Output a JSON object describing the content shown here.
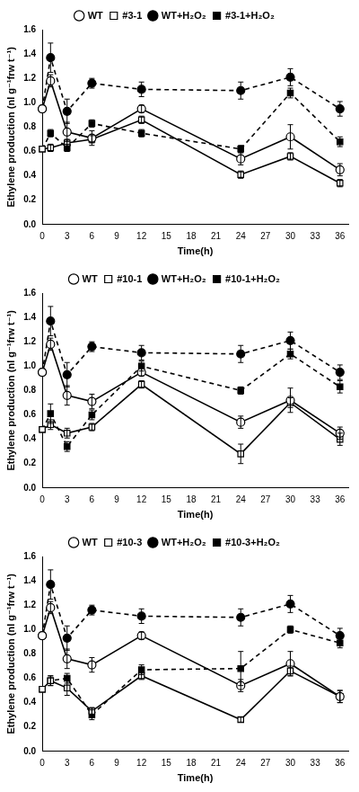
{
  "chart_data": [
    {
      "type": "line",
      "x_label": "Time(h)",
      "y_label": "Ethylene production (nl g⁻¹frw t⁻¹)",
      "x": [
        0,
        1,
        3,
        6,
        12,
        24,
        30,
        36
      ],
      "xlim": [
        0,
        37
      ],
      "xticks": [
        0,
        3,
        6,
        9,
        12,
        15,
        18,
        21,
        24,
        27,
        30,
        33,
        36
      ],
      "ylim": [
        0,
        1.6
      ],
      "yticks": [
        {
          "value": 0,
          "label": "0.0"
        },
        {
          "value": 0.2,
          "label": "0.2"
        },
        {
          "value": 0.4,
          "label": "0.4"
        },
        {
          "value": 0.6,
          "label": "0.6"
        },
        {
          "value": 0.8,
          "label": "0.8"
        },
        {
          "value": 1,
          "label": "1.0"
        },
        {
          "value": 1.2,
          "label": "1.2"
        },
        {
          "value": 1.4,
          "label": "1.4"
        },
        {
          "value": 1.6,
          "label": "1.6"
        }
      ],
      "grid": false,
      "legend": "top",
      "series": [
        {
          "name": "WT",
          "color": "#000000",
          "marker": "circle-open",
          "line_style": "solid",
          "values": [
            0.95,
            1.18,
            0.76,
            0.71,
            0.95,
            0.54,
            0.72,
            0.45
          ],
          "errors": [
            null,
            0.05,
            0.08,
            0.06,
            0.03,
            0.05,
            0.1,
            0.05
          ]
        },
        {
          "name": "#3-1",
          "color": "#000000",
          "marker": "square-open",
          "line_style": "solid",
          "values": [
            0.62,
            0.63,
            0.67,
            0.7,
            0.86,
            0.41,
            0.56,
            0.34
          ],
          "errors": [
            null,
            0.03,
            0.03,
            0.03,
            0.03,
            0.03,
            0.03,
            0.03
          ]
        },
        {
          "name": "WT+H₂O₂",
          "color": "#000000",
          "marker": "circle",
          "line_style": "dashed",
          "values": [
            0.95,
            1.37,
            0.93,
            1.16,
            1.11,
            1.1,
            1.21,
            0.95
          ],
          "errors": [
            null,
            0.12,
            0.1,
            0.04,
            0.06,
            0.07,
            0.07,
            0.06
          ]
        },
        {
          "name": "#3-1+H₂O₂",
          "color": "#000000",
          "marker": "square",
          "line_style": "dashed",
          "values": [
            0.62,
            0.75,
            0.63,
            0.83,
            0.75,
            0.62,
            1.08,
            0.68
          ],
          "errors": [
            null,
            0.03,
            0.03,
            0.03,
            0.03,
            0.03,
            0.04,
            0.04
          ]
        }
      ]
    },
    {
      "type": "line",
      "x_label": "Time(h)",
      "y_label": "Ethylene production (nl g⁻¹frw t⁻¹)",
      "x": [
        0,
        1,
        3,
        6,
        12,
        24,
        30,
        36
      ],
      "xlim": [
        0,
        37
      ],
      "xticks": [
        0,
        3,
        6,
        9,
        12,
        15,
        18,
        21,
        24,
        27,
        30,
        33,
        36
      ],
      "ylim": [
        0,
        1.6
      ],
      "yticks": [
        {
          "value": 0,
          "label": "0.0"
        },
        {
          "value": 0.2,
          "label": "0.2"
        },
        {
          "value": 0.4,
          "label": "0.4"
        },
        {
          "value": 0.6,
          "label": "0.6"
        },
        {
          "value": 0.8,
          "label": "0.8"
        },
        {
          "value": 1,
          "label": "1.0"
        },
        {
          "value": 1.2,
          "label": "1.2"
        },
        {
          "value": 1.4,
          "label": "1.4"
        },
        {
          "value": 1.6,
          "label": "1.6"
        }
      ],
      "grid": false,
      "legend": "top",
      "series": [
        {
          "name": "WT",
          "color": "#000000",
          "marker": "circle-open",
          "line_style": "solid",
          "values": [
            0.95,
            1.18,
            0.76,
            0.71,
            0.95,
            0.54,
            0.72,
            0.45
          ],
          "errors": [
            null,
            0.05,
            0.08,
            0.06,
            0.03,
            0.05,
            0.1,
            0.05
          ]
        },
        {
          "name": "#10-1",
          "color": "#000000",
          "marker": "square-open",
          "line_style": "solid",
          "values": [
            0.48,
            0.52,
            0.45,
            0.5,
            0.85,
            0.28,
            0.7,
            0.4
          ],
          "errors": [
            null,
            0.04,
            0.04,
            0.03,
            0.03,
            0.08,
            0.04,
            0.05
          ]
        },
        {
          "name": "WT+H₂O₂",
          "color": "#000000",
          "marker": "circle",
          "line_style": "dashed",
          "values": [
            0.95,
            1.37,
            0.93,
            1.16,
            1.11,
            1.1,
            1.21,
            0.95
          ],
          "errors": [
            null,
            0.12,
            0.1,
            0.04,
            0.06,
            0.07,
            0.07,
            0.06
          ]
        },
        {
          "name": "#10-1+H₂O₂",
          "color": "#000000",
          "marker": "square",
          "line_style": "dashed",
          "values": [
            0.48,
            0.61,
            0.34,
            0.6,
            1.0,
            0.8,
            1.1,
            0.83
          ],
          "errors": [
            null,
            0.08,
            0.04,
            0.04,
            0.04,
            0.03,
            0.04,
            0.05
          ]
        }
      ]
    },
    {
      "type": "line",
      "x_label": "Time(h)",
      "y_label": "Ethylene production (nl g⁻¹frw t⁻¹)",
      "x": [
        0,
        1,
        3,
        6,
        12,
        24,
        30,
        36
      ],
      "xlim": [
        0,
        37
      ],
      "xticks": [
        0,
        3,
        6,
        9,
        12,
        15,
        18,
        21,
        24,
        27,
        30,
        33,
        36
      ],
      "ylim": [
        0,
        1.6
      ],
      "yticks": [
        {
          "value": 0,
          "label": "0.0"
        },
        {
          "value": 0.2,
          "label": "0.2"
        },
        {
          "value": 0.4,
          "label": "0.4"
        },
        {
          "value": 0.6,
          "label": "0.6"
        },
        {
          "value": 0.8,
          "label": "0.8"
        },
        {
          "value": 1,
          "label": "1.0"
        },
        {
          "value": 1.2,
          "label": "1.2"
        },
        {
          "value": 1.4,
          "label": "1.4"
        },
        {
          "value": 1.6,
          "label": "1.6"
        }
      ],
      "grid": false,
      "legend": "top",
      "series": [
        {
          "name": "WT",
          "color": "#000000",
          "marker": "circle-open",
          "line_style": "solid",
          "values": [
            0.95,
            1.18,
            0.76,
            0.71,
            0.95,
            0.54,
            0.72,
            0.45
          ],
          "errors": [
            null,
            0.05,
            0.08,
            0.06,
            0.03,
            0.05,
            0.1,
            0.05
          ]
        },
        {
          "name": "#10-3",
          "color": "#000000",
          "marker": "square-open",
          "line_style": "solid",
          "values": [
            0.51,
            0.58,
            0.52,
            0.33,
            0.62,
            0.26,
            0.66,
            0.45
          ],
          "errors": [
            null,
            0.04,
            0.06,
            0.03,
            0.03,
            0.02,
            0.04,
            0.05
          ]
        },
        {
          "name": "WT+H₂O₂",
          "color": "#000000",
          "marker": "circle",
          "line_style": "dashed",
          "values": [
            0.95,
            1.37,
            0.93,
            1.16,
            1.11,
            1.1,
            1.21,
            0.95
          ],
          "errors": [
            null,
            0.12,
            0.1,
            0.04,
            0.06,
            0.07,
            0.07,
            0.06
          ]
        },
        {
          "name": "#10-3+H₂O₂",
          "color": "#000000",
          "marker": "square",
          "line_style": "dashed",
          "values": [
            0.51,
            0.58,
            0.6,
            0.3,
            0.67,
            0.68,
            1.0,
            0.89
          ],
          "errors": [
            null,
            0.04,
            0.04,
            0.04,
            0.04,
            0.14,
            0.03,
            0.04
          ]
        }
      ]
    }
  ]
}
